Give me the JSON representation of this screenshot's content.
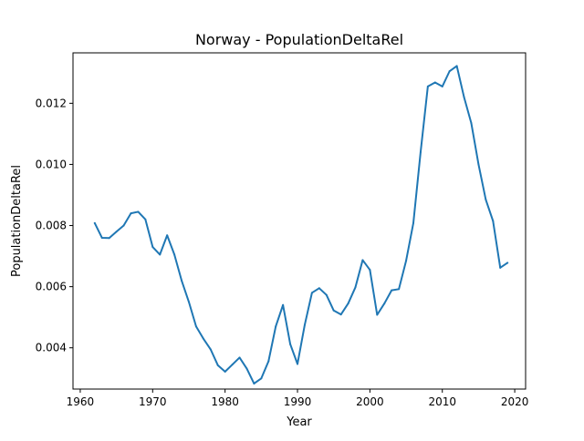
{
  "chart_data": {
    "type": "line",
    "title": "Norway - PopulationDeltaRel",
    "xlabel": "Year",
    "ylabel": "PopulationDeltaRel",
    "xlim": [
      1959,
      2021.5
    ],
    "ylim": [
      0.00265,
      0.01365
    ],
    "x_ticks": [
      1960,
      1970,
      1980,
      1990,
      2000,
      2010,
      2020
    ],
    "x_tick_labels": [
      "1960",
      "1970",
      "1980",
      "1990",
      "2000",
      "2010",
      "2020"
    ],
    "y_ticks": [
      0.004,
      0.006,
      0.008,
      0.01,
      0.012
    ],
    "y_tick_labels": [
      "0.004",
      "0.006",
      "0.008",
      "0.010",
      "0.012"
    ],
    "grid": false,
    "line_color": "#1f77b4",
    "series": [
      {
        "x": [
          1962,
          1963,
          1964,
          1965,
          1966,
          1967,
          1968,
          1969,
          1970,
          1971,
          1972,
          1973,
          1974,
          1975,
          1976,
          1977,
          1978,
          1979,
          1980,
          1981,
          1982,
          1983,
          1984,
          1985,
          1986,
          1987,
          1988,
          1989,
          1990,
          1991,
          1992,
          1993,
          1994,
          1995,
          1996,
          1997,
          1998,
          1999,
          2000,
          2001,
          2002,
          2003,
          2004,
          2005,
          2006,
          2007,
          2008,
          2009,
          2010,
          2011,
          2012,
          2013,
          2014,
          2015,
          2016,
          2017,
          2018,
          2019
        ],
        "values": [
          0.00808,
          0.0076,
          0.00759,
          0.0078,
          0.008,
          0.0084,
          0.00845,
          0.0082,
          0.0073,
          0.00705,
          0.00768,
          0.00705,
          0.0062,
          0.0055,
          0.0047,
          0.0043,
          0.00395,
          0.00343,
          0.00322,
          0.00345,
          0.00368,
          0.00332,
          0.00283,
          0.003,
          0.00356,
          0.0047,
          0.0054,
          0.00412,
          0.00347,
          0.00475,
          0.0058,
          0.00595,
          0.00573,
          0.00522,
          0.00509,
          0.00545,
          0.00598,
          0.00687,
          0.00655,
          0.00508,
          0.00545,
          0.00588,
          0.00592,
          0.00685,
          0.00808,
          0.0104,
          0.01255,
          0.01268,
          0.01255,
          0.01305,
          0.01322,
          0.0122,
          0.01135,
          0.01,
          0.00885,
          0.00815,
          0.00662,
          0.00678
        ]
      }
    ]
  }
}
